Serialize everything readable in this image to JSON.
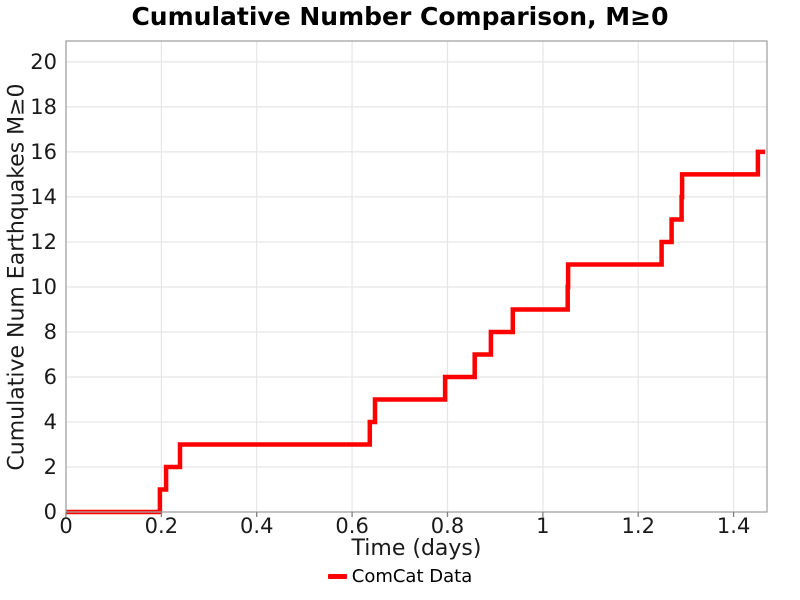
{
  "figure": {
    "background": "#ffffff"
  },
  "chart_data": {
    "type": "line",
    "line_style": "step-post",
    "title": "Cumulative Number Comparison, M≥0",
    "xlabel": "Time (days)",
    "ylabel": "Cumulative Num Earthquakes M≥0",
    "xlim": [
      0,
      1.47
    ],
    "ylim": [
      0,
      20.93
    ],
    "x_ticks": [
      0,
      0.2,
      0.4,
      0.6,
      0.8,
      1,
      1.2,
      1.4
    ],
    "x_tick_labels": [
      "0",
      "0.2",
      "0.4",
      "0.6",
      "0.8",
      "1",
      "1.2",
      "1.4"
    ],
    "y_ticks": [
      0,
      2,
      4,
      6,
      8,
      10,
      12,
      14,
      16,
      18,
      20
    ],
    "y_tick_labels": [
      "0",
      "2",
      "4",
      "6",
      "8",
      "10",
      "12",
      "14",
      "16",
      "18",
      "20"
    ],
    "grid": true,
    "grid_color": "#e6e6e6",
    "spine_color": "#a3a3a3",
    "tick_mark_color": "#808080",
    "legend": {
      "position": "bottom-center",
      "entries": [
        {
          "label": "ComCat Data",
          "color": "#ff0000"
        }
      ]
    },
    "series": [
      {
        "name": "ComCat Data",
        "color": "#ff0000",
        "line_width": 4.5,
        "start": [
          0,
          0
        ],
        "events": [
          [
            0.197,
            1
          ],
          [
            0.21,
            2
          ],
          [
            0.239,
            3
          ],
          [
            0.637,
            4
          ],
          [
            0.648,
            5
          ],
          [
            0.795,
            6
          ],
          [
            0.857,
            7
          ],
          [
            0.891,
            8
          ],
          [
            0.937,
            9
          ],
          [
            1.052,
            10
          ],
          [
            1.053,
            11
          ],
          [
            1.249,
            12
          ],
          [
            1.27,
            13
          ],
          [
            1.291,
            14
          ],
          [
            1.292,
            15
          ],
          [
            1.451,
            16
          ]
        ],
        "end_time": 1.466
      }
    ]
  }
}
